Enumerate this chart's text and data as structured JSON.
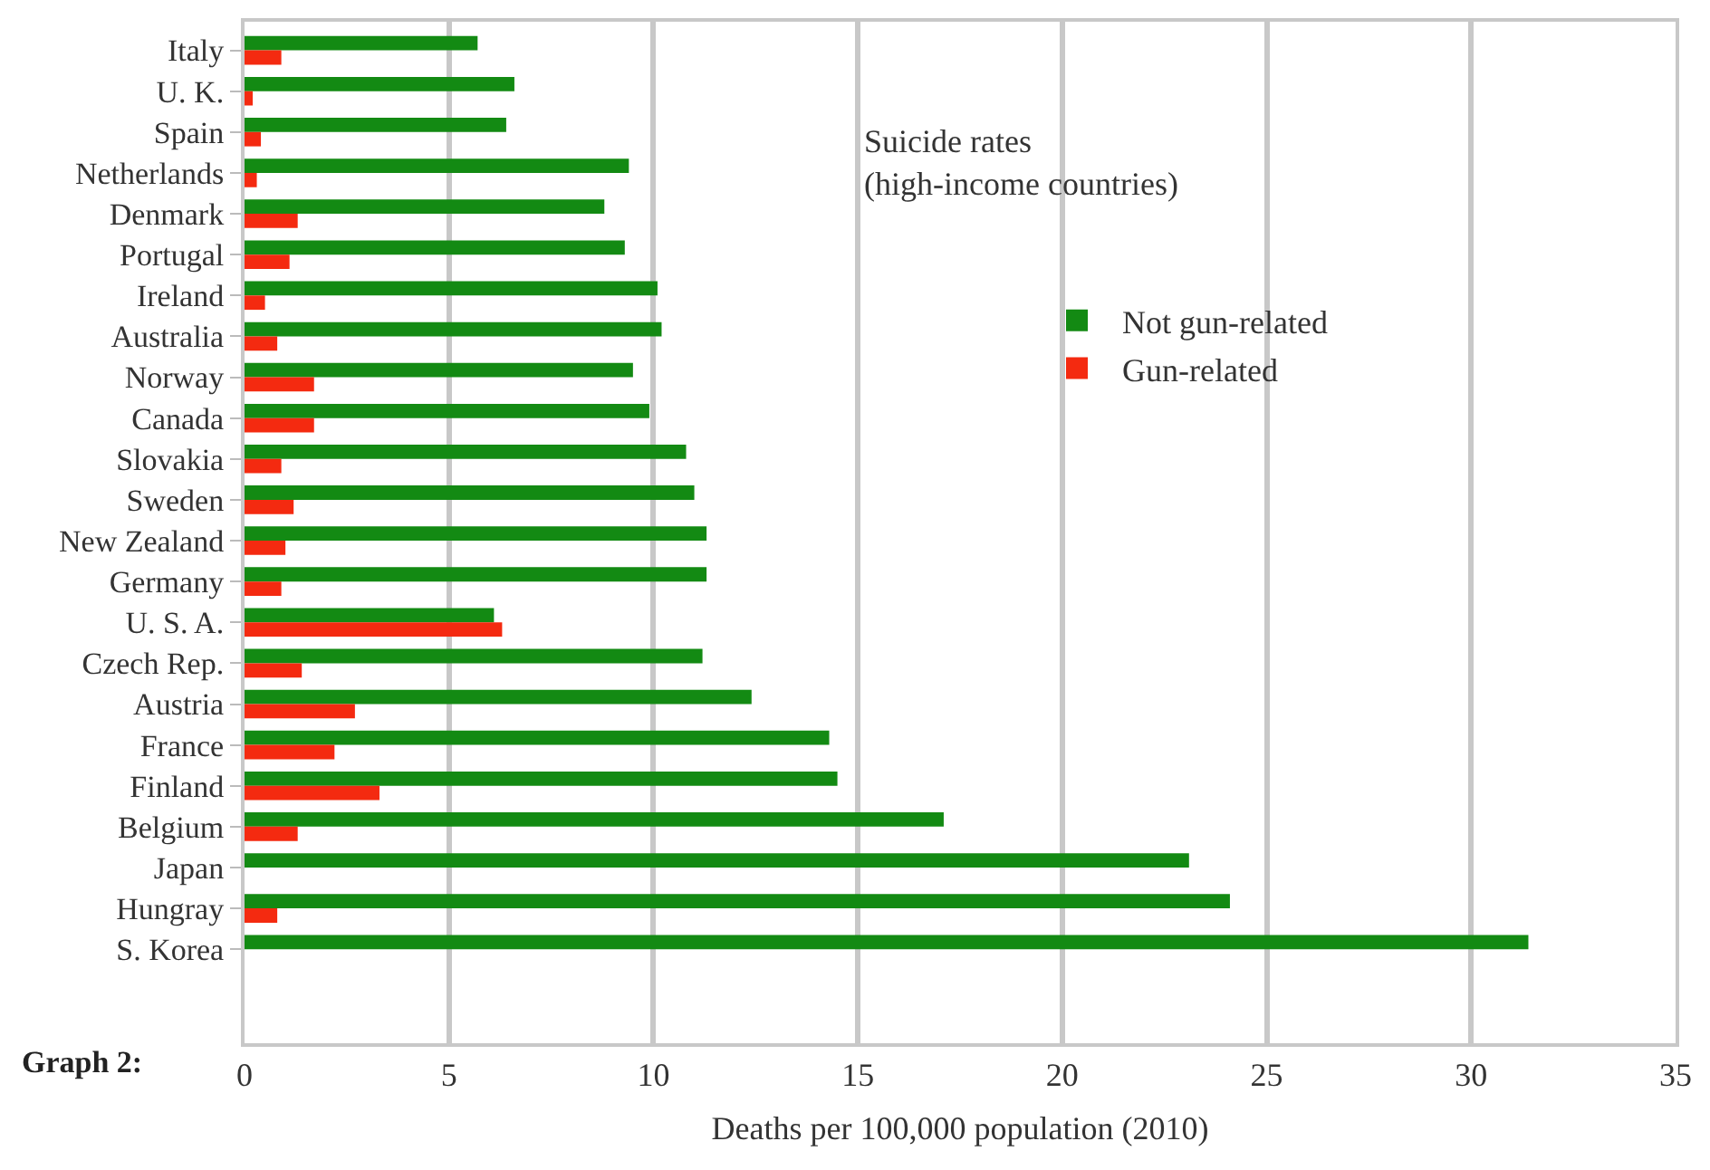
{
  "chart_data": {
    "type": "bar",
    "orientation": "horizontal",
    "title": "Suicide rates\n(high-income countries)",
    "xlabel": "Deaths per 100,000 population (2010)",
    "categories": [
      "Italy",
      "U. K.",
      "Spain",
      "Netherlands",
      "Denmark",
      "Portugal",
      "Ireland",
      "Australia",
      "Norway",
      "Canada",
      "Slovakia",
      "Sweden",
      "New Zealand",
      "Germany",
      "U. S. A.",
      "Czech Rep.",
      "Austria",
      "France",
      "Finland",
      "Belgium",
      "Japan",
      "Hungray",
      "S. Korea"
    ],
    "series": [
      {
        "name": "Not gun-related",
        "color": "#138a13",
        "values": [
          5.7,
          6.6,
          6.4,
          9.4,
          8.8,
          9.3,
          10.1,
          10.2,
          9.5,
          9.9,
          10.8,
          11.0,
          11.3,
          11.3,
          6.1,
          11.2,
          12.4,
          14.3,
          14.5,
          17.1,
          23.1,
          24.1,
          31.4
        ]
      },
      {
        "name": "Gun-related",
        "color": "#f42a10",
        "values": [
          0.9,
          0.2,
          0.4,
          0.3,
          1.3,
          1.1,
          0.5,
          0.8,
          1.7,
          1.7,
          0.9,
          1.2,
          1.0,
          0.9,
          6.3,
          1.4,
          2.7,
          2.2,
          3.3,
          1.3,
          null,
          0.8,
          null
        ]
      }
    ],
    "xlim": [
      0,
      35
    ],
    "xticks": [
      0,
      5,
      10,
      15,
      20,
      25,
      30,
      35
    ],
    "grid": "x",
    "legend": "right",
    "annotations": [
      "Graph 2:"
    ]
  }
}
